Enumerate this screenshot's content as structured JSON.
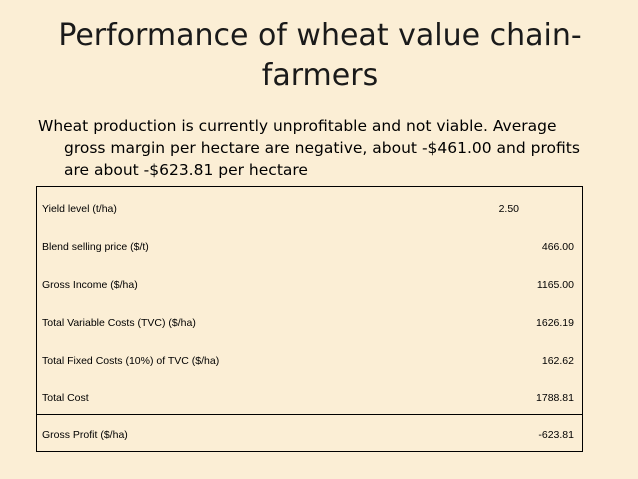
{
  "slide": {
    "title": "Performance of wheat value chain-farmers",
    "summary": "Wheat production is currently unprofitable and not viable.   Average gross margin per hectare are negative, about -$461.00 and profits are about -$623.81 per hectare"
  },
  "table": {
    "rows": [
      {
        "label": "Yield level (t/ha)",
        "value": "2.50"
      },
      {
        "label": "Blend selling price ($/t)",
        "value": "466.00"
      },
      {
        "label": "Gross Income ($/ha)",
        "value": "1165.00"
      },
      {
        "label": "Total Variable Costs (TVC) ($/ha)",
        "value": "1626.19"
      },
      {
        "label": "Total Fixed Costs (10%) of TVC ($/ha)",
        "value": "162.62"
      },
      {
        "label": "Total Cost",
        "value": "1788.81"
      },
      {
        "label": "Gross Profit ($/ha)",
        "value": "-623.81"
      }
    ]
  }
}
